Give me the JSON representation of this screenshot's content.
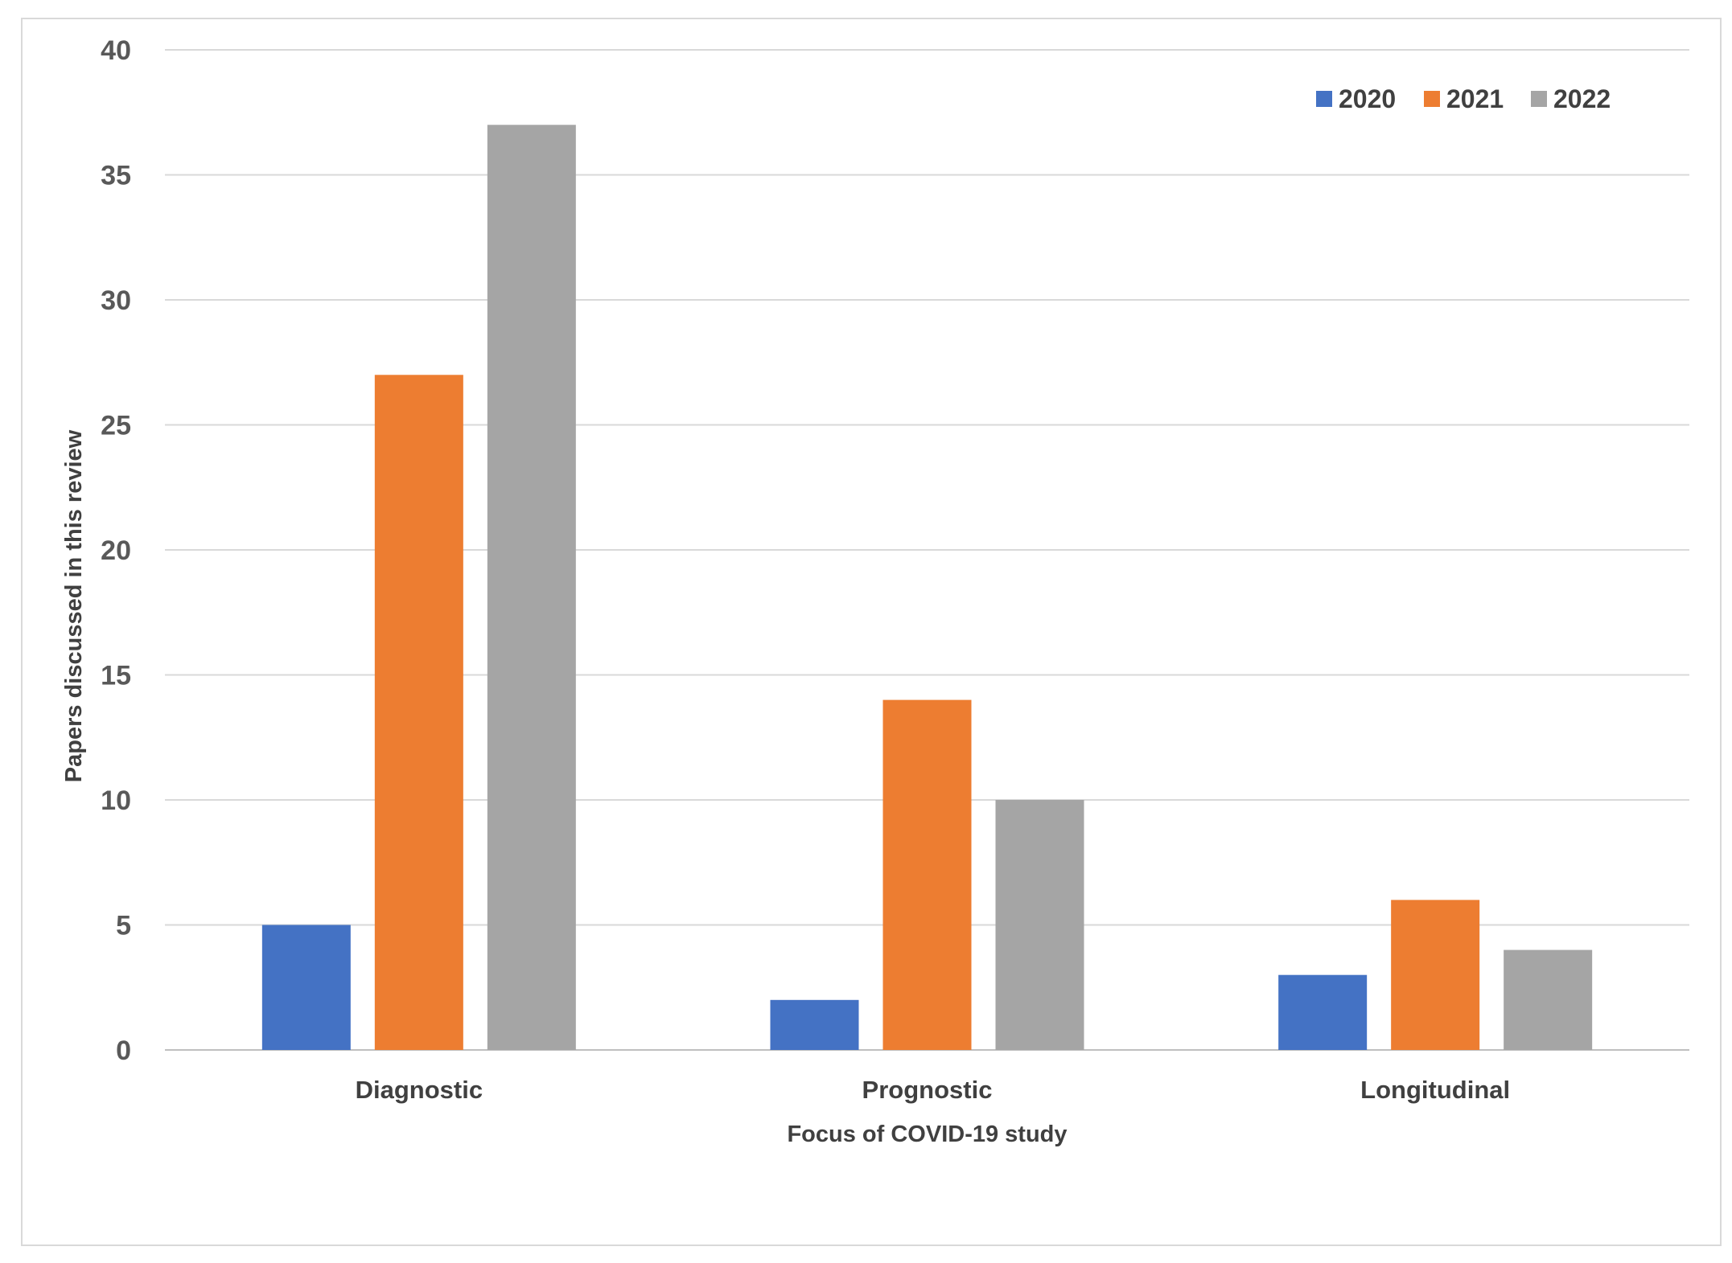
{
  "chart_data": {
    "type": "bar",
    "categories": [
      "Diagnostic",
      "Prognostic",
      "Longitudinal"
    ],
    "series": [
      {
        "name": "2020",
        "color": "#4472c4",
        "values": [
          5,
          2,
          3
        ]
      },
      {
        "name": "2021",
        "color": "#ed7d31",
        "values": [
          27,
          14,
          6
        ]
      },
      {
        "name": "2022",
        "color": "#a5a5a5",
        "values": [
          37,
          10,
          4
        ]
      }
    ],
    "title": "",
    "xlabel": "Focus of COVID-19 study",
    "ylabel": "Papers  discussed in this review",
    "ylim": [
      0,
      40
    ],
    "yticks": [
      0,
      5,
      10,
      15,
      20,
      25,
      30,
      35,
      40
    ],
    "grid": true,
    "legend_position": "top-right"
  }
}
